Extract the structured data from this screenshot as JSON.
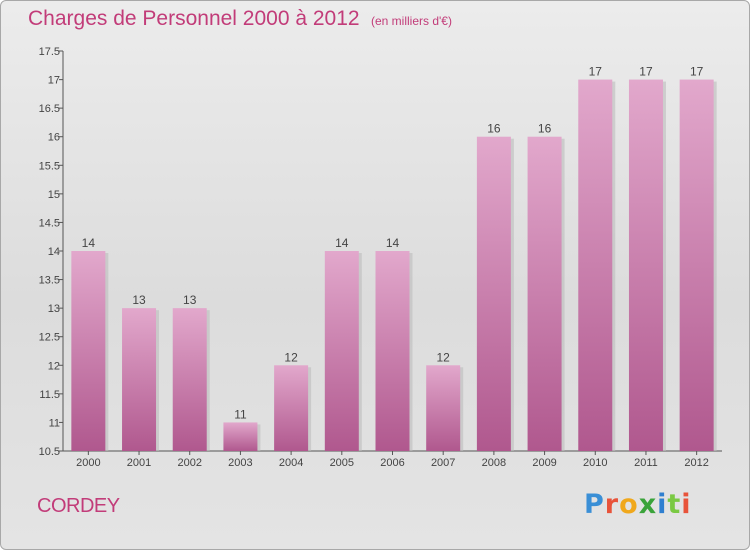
{
  "title": "Charges de Personnel 2000 à 2012",
  "subtitle": "(en milliers d'€)",
  "commune": "CORDEY",
  "logo": {
    "letters": [
      "P",
      "r",
      "o",
      "x",
      "i",
      "t",
      "i"
    ],
    "colors": [
      "#3a8fd6",
      "#e8533a",
      "#f0a81c",
      "#3aa33a",
      "#2f7fd0",
      "#7ac943",
      "#e8533a"
    ]
  },
  "colors": {
    "bar_top": "#e2a8cc",
    "bar_bottom": "#b0588e",
    "title": "#c23c79"
  },
  "chart_data": {
    "type": "bar",
    "categories": [
      "2000",
      "2001",
      "2002",
      "2003",
      "2004",
      "2005",
      "2006",
      "2007",
      "2008",
      "2009",
      "2010",
      "2011",
      "2012"
    ],
    "values": [
      14,
      13,
      13,
      11,
      12,
      14,
      14,
      12,
      16,
      16,
      17,
      17,
      17
    ],
    "ylim": [
      10.5,
      17.5
    ],
    "yticks": [
      "10.5",
      "11",
      "11.5",
      "12",
      "12.5",
      "13",
      "13.5",
      "14",
      "14.5",
      "15",
      "15.5",
      "16",
      "16.5",
      "17",
      "17.5"
    ],
    "grid": false
  }
}
